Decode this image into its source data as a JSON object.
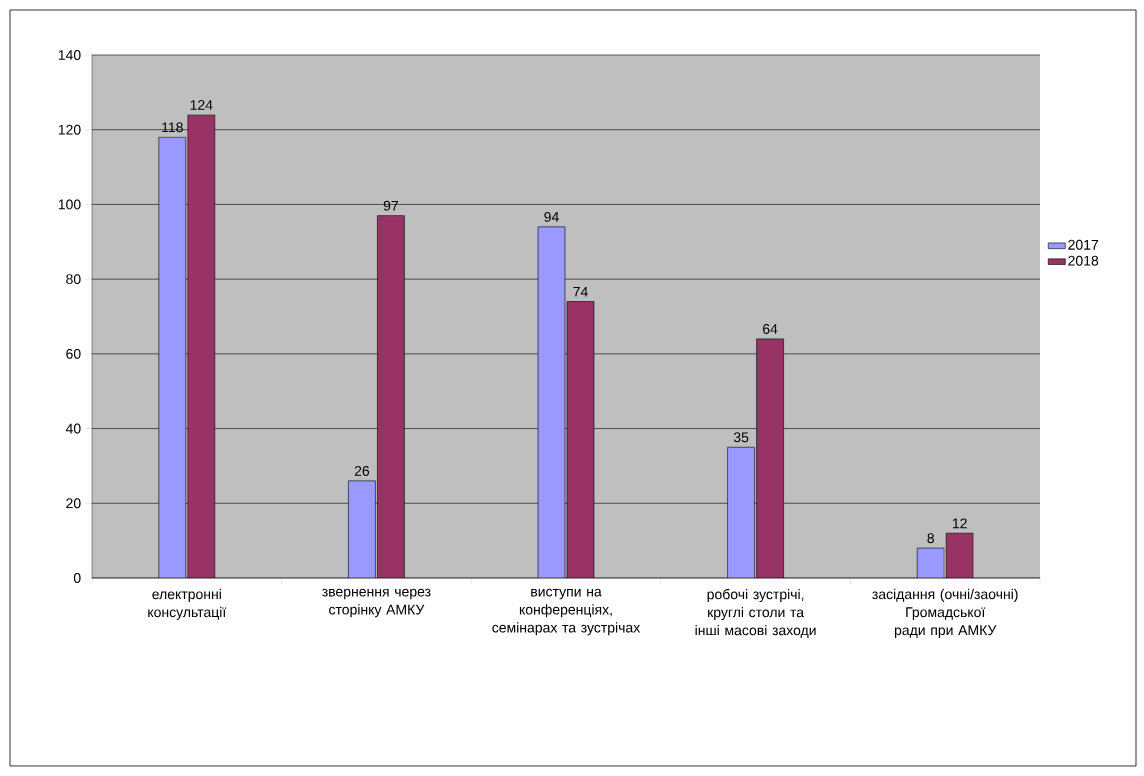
{
  "chart_data": {
    "type": "bar",
    "categories": [
      "електронні консультації",
      "звернення через сторінку АМКУ",
      "виступи на конференціях, семінарах та зустрічах",
      "робочі зустрічі, круглі столи та інші масові заходи",
      "засідання (очні/заочні) Громадської ради при АМКУ"
    ],
    "series": [
      {
        "name": "2017",
        "color": "#9999ff",
        "values": [
          118,
          26,
          94,
          35,
          8
        ]
      },
      {
        "name": "2018",
        "color": "#993366",
        "values": [
          124,
          97,
          74,
          64,
          12
        ]
      }
    ],
    "ylim": [
      0,
      140
    ],
    "yticks": [
      0,
      20,
      40,
      60,
      80,
      100,
      120,
      140
    ],
    "grid": "y",
    "legend": "right",
    "data_labels": true
  }
}
